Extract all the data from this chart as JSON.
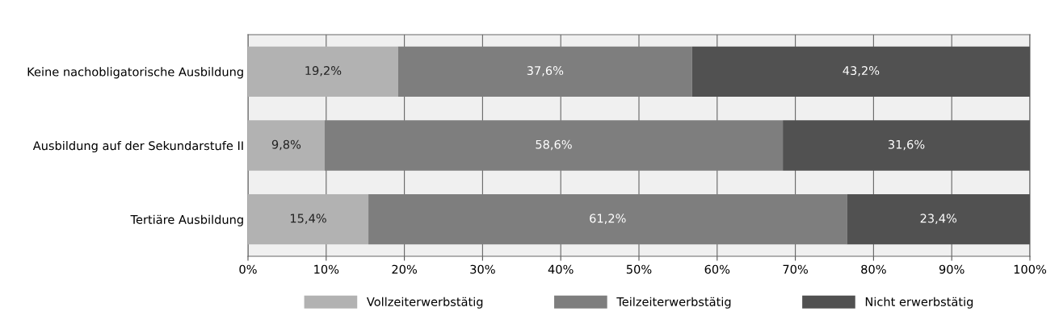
{
  "chart_data": {
    "type": "bar",
    "orientation": "horizontal",
    "stacked": true,
    "categories": [
      "Keine nachobligatorische Ausbildung",
      "Ausbildung auf der Sekundarstufe II",
      "Tertiäre Ausbildung"
    ],
    "series": [
      {
        "name": "Vollzeiterwerbstätig",
        "color": "#b2b2b2",
        "values": [
          19.2,
          9.8,
          15.4
        ],
        "value_labels": [
          "19,2%",
          "9,8%",
          "15,4%"
        ]
      },
      {
        "name": "Teilzeiterwerbstätig",
        "color": "#7e7e7e",
        "values": [
          37.6,
          58.6,
          61.2
        ],
        "value_labels": [
          "37,6%",
          "58,6%",
          "61,2%"
        ]
      },
      {
        "name": "Nicht erwerbstätig",
        "color": "#515151",
        "values": [
          43.2,
          31.6,
          23.4
        ],
        "value_labels": [
          "43,2%",
          "31,6%",
          "23,4%"
        ]
      }
    ],
    "xlim": [
      0,
      100
    ],
    "xticks": [
      {
        "value": 0,
        "label": "0%"
      },
      {
        "value": 10,
        "label": "10%"
      },
      {
        "value": 20,
        "label": "20%"
      },
      {
        "value": 30,
        "label": "30%"
      },
      {
        "value": 40,
        "label": "40%"
      },
      {
        "value": 50,
        "label": "50%"
      },
      {
        "value": 60,
        "label": "60%"
      },
      {
        "value": 70,
        "label": "70%"
      },
      {
        "value": 80,
        "label": "80%"
      },
      {
        "value": 90,
        "label": "90%"
      },
      {
        "value": 100,
        "label": "100%"
      }
    ],
    "grid": "x",
    "legend": "bottom"
  }
}
